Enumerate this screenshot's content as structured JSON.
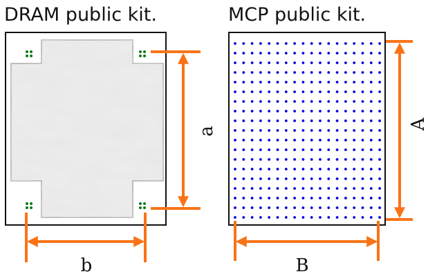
{
  "left": {
    "title": "DRAM public kit.",
    "height_label": "a",
    "width_label": "b"
  },
  "right": {
    "title": "MCP public kit.",
    "height_label": "A",
    "width_label": "B"
  }
}
